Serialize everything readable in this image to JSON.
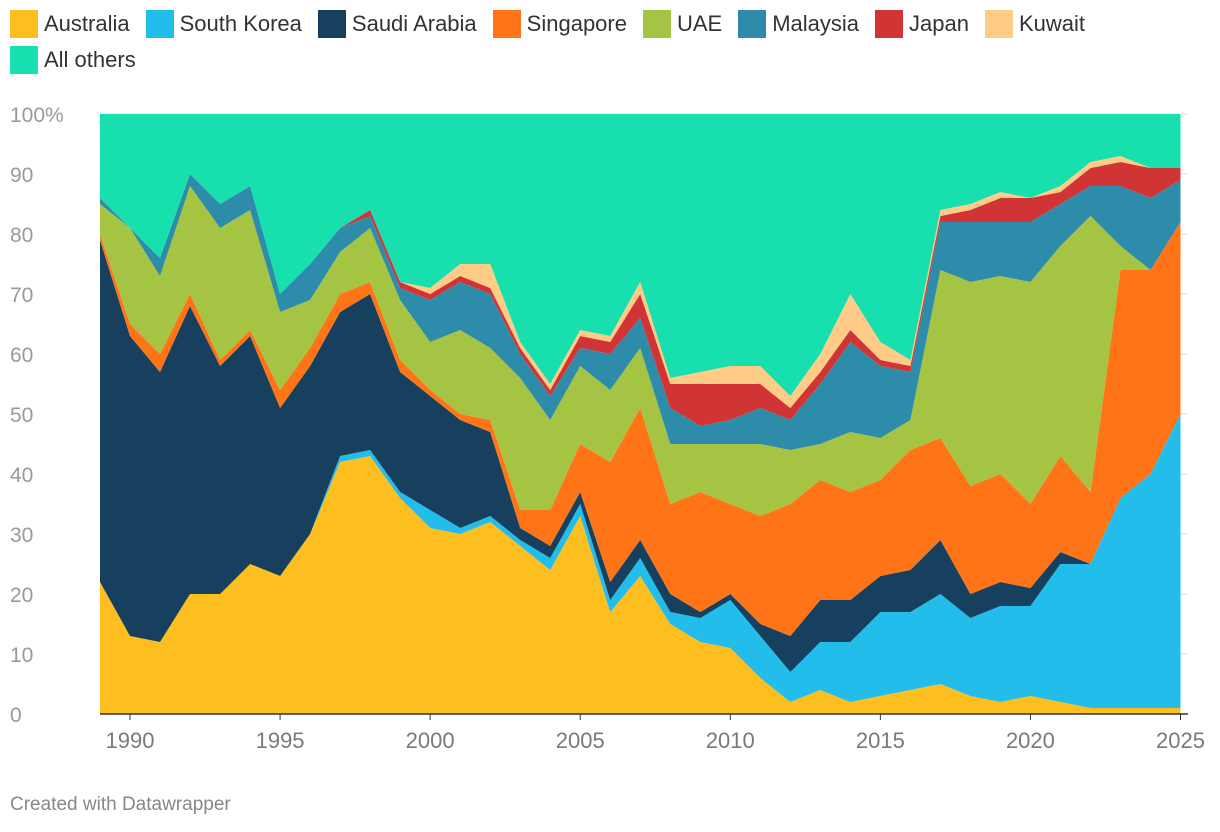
{
  "chart_data": {
    "type": "area",
    "stacked": true,
    "normalized": true,
    "title": "",
    "xlabel": "",
    "ylabel": "",
    "ylim": [
      0,
      100
    ],
    "y_ticks": [
      "100%",
      "90",
      "80",
      "70",
      "60",
      "50",
      "40",
      "30",
      "20",
      "10",
      "0"
    ],
    "x_ticks": [
      "1990",
      "1995",
      "2000",
      "2005",
      "2010",
      "2015",
      "2020",
      "2025"
    ],
    "x": [
      1989,
      1990,
      1991,
      1992,
      1993,
      1994,
      1995,
      1996,
      1997,
      1998,
      1999,
      2000,
      2001,
      2002,
      2003,
      2004,
      2005,
      2006,
      2007,
      2008,
      2009,
      2010,
      2011,
      2012,
      2013,
      2014,
      2015,
      2016,
      2017,
      2018,
      2019,
      2020,
      2021,
      2022,
      2023,
      2024,
      2025
    ],
    "series": [
      {
        "name": "Australia",
        "color": "#FDBF20",
        "values": [
          22,
          13,
          12,
          20,
          20,
          25,
          23,
          30,
          42,
          43,
          36,
          31,
          30,
          32,
          28,
          24,
          33,
          17,
          23,
          15,
          12,
          11,
          6,
          2,
          4,
          2,
          3,
          4,
          5,
          3,
          2,
          3,
          2,
          1,
          1,
          1,
          1
        ]
      },
      {
        "name": "South Korea",
        "color": "#22BDEB",
        "values": [
          0,
          0,
          0,
          0,
          0,
          0,
          0,
          0,
          1,
          1,
          1,
          3,
          1,
          1,
          1,
          2,
          2,
          2,
          3,
          2,
          4,
          8,
          7,
          5,
          8,
          10,
          14,
          13,
          15,
          13,
          16,
          15,
          23,
          24,
          35,
          39,
          49
        ]
      },
      {
        "name": "Saudi Arabia",
        "color": "#17405F",
        "values": [
          57,
          50,
          45,
          48,
          38,
          38,
          28,
          28,
          24,
          26,
          20,
          19,
          18,
          14,
          2,
          2,
          2,
          3,
          3,
          3,
          1,
          1,
          2,
          6,
          7,
          7,
          6,
          7,
          9,
          4,
          4,
          3,
          2,
          0,
          0,
          0,
          0
        ]
      },
      {
        "name": "Singapore",
        "color": "#FF7417",
        "values": [
          1,
          2,
          3,
          2,
          1,
          1,
          3,
          3,
          3,
          2,
          2,
          1,
          1,
          2,
          3,
          6,
          8,
          20,
          22,
          15,
          20,
          15,
          18,
          22,
          20,
          18,
          16,
          20,
          17,
          18,
          18,
          14,
          16,
          12,
          38,
          34,
          32
        ]
      },
      {
        "name": "UAE",
        "color": "#A6C444",
        "values": [
          5,
          16,
          13,
          18,
          22,
          20,
          13,
          8,
          7,
          9,
          10,
          8,
          14,
          12,
          22,
          15,
          13,
          12,
          10,
          10,
          8,
          10,
          12,
          9,
          6,
          10,
          7,
          5,
          28,
          34,
          33,
          37,
          35,
          46,
          4,
          0,
          0
        ]
      },
      {
        "name": "Malaysia",
        "color": "#2E8CAB",
        "values": [
          1,
          0,
          3,
          2,
          4,
          4,
          3,
          6,
          4,
          2,
          2,
          7,
          8,
          9,
          4,
          4,
          3,
          6,
          5,
          6,
          3,
          4,
          6,
          5,
          10,
          15,
          12,
          8,
          8,
          10,
          9,
          10,
          7,
          5,
          10,
          12,
          7
        ]
      },
      {
        "name": "Japan",
        "color": "#D13434",
        "values": [
          0,
          0,
          0,
          0,
          0,
          0,
          0,
          0,
          0,
          1,
          1,
          1,
          1,
          1,
          1,
          1,
          2,
          2,
          4,
          4,
          7,
          6,
          4,
          2,
          2,
          2,
          1,
          1,
          1,
          2,
          4,
          4,
          2,
          3,
          4,
          5,
          2
        ]
      },
      {
        "name": "Kuwait",
        "color": "#FFCC88",
        "values": [
          0,
          0,
          0,
          0,
          0,
          0,
          0,
          0,
          0,
          0,
          0,
          1,
          2,
          4,
          1,
          1,
          1,
          1,
          2,
          1,
          2,
          3,
          3,
          2,
          3,
          6,
          3,
          1,
          1,
          1,
          1,
          0,
          1,
          1,
          1,
          0,
          0
        ]
      },
      {
        "name": "All others",
        "color": "#17E0AE",
        "values": [
          14,
          19,
          24,
          10,
          15,
          12,
          30,
          25,
          19,
          16,
          28,
          29,
          25,
          25,
          38,
          45,
          36,
          37,
          28,
          44,
          43,
          42,
          42,
          47,
          40,
          30,
          38,
          41,
          16,
          15,
          13,
          14,
          12,
          8,
          7,
          9,
          9
        ]
      }
    ]
  },
  "footer": {
    "credit": "Created with Datawrapper"
  }
}
